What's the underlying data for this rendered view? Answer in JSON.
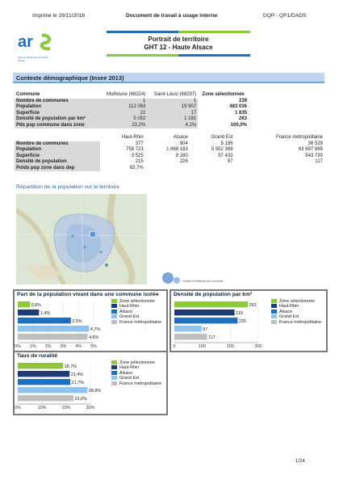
{
  "header": {
    "printed": "Imprimé le 28/11/2016",
    "doc_type": "Document de travail à usage interne",
    "dept": "DQP - QP1/DADS"
  },
  "logo": {
    "name": "ars",
    "sub": "Agence Régionale de Santé",
    "region": "Alsace"
  },
  "title": {
    "line1": "Portrait de territoire",
    "line2": "GHT 12 - Haute Alsace"
  },
  "section": "Contexte démographique (Insee 2013)",
  "table1": {
    "headers": [
      "Commune",
      "Mulhouse (68224)",
      "Saint-Louis (68297)",
      "Zone sélectionnée"
    ],
    "rows": [
      [
        "Nombre de communes",
        "1",
        "1",
        "239"
      ],
      [
        "Population",
        "112 063",
        "19 907",
        "483 036"
      ],
      [
        "Superficie",
        "22",
        "17",
        "1 835"
      ],
      [
        "Densité de population par km²",
        "5 052",
        "1 181",
        "263"
      ],
      [
        "Pds pop commune dans zone",
        "23,2%",
        "4,1%",
        "100,0%"
      ]
    ]
  },
  "table2": {
    "headers": [
      "",
      "Haut-Rhin",
      "Alsace",
      "Grand Est",
      "France métropolitaine"
    ],
    "rows": [
      [
        "Nombre de communes",
        "377",
        "904",
        "5 196",
        "36 529"
      ],
      [
        "Population",
        "758 723",
        "1 868 183",
        "5 552 388",
        "63 697 865"
      ],
      [
        "Superficie",
        "3 525",
        "8 280",
        "57 433",
        "543 730"
      ],
      [
        "Densité de population",
        "215",
        "226",
        "97",
        "117"
      ],
      [
        "Poids pop zone dans dep",
        "63,7%",
        "",
        "",
        ""
      ]
    ]
  },
  "map": {
    "title": "Répartition de la population sur le territoire",
    "legend_text": "nombre d'habitants par commune"
  },
  "colors": {
    "zone": "#8dc63f",
    "haut_rhin": "#1f3b73",
    "alsace": "#1f6fc0",
    "grand_est": "#8fc3ef",
    "france": "#bfbfbf"
  },
  "legend_labels": [
    "Zone sélectionnée",
    "Haut-Rhin",
    "Alsace",
    "Grand Est",
    "France métropolitaine"
  ],
  "chart_data": [
    {
      "type": "bar",
      "title": "Part de la population vivant dans une commune isolée",
      "categories": [
        "Zone sélectionnée",
        "Haut-Rhin",
        "Alsace",
        "Grand Est",
        "France métropolitaine"
      ],
      "values": [
        0.8,
        1.4,
        3.5,
        4.7,
        4.6
      ],
      "value_labels": [
        "0,8%",
        "1,4%",
        "3,5%",
        "4,7%",
        "4,6%"
      ],
      "xlim": [
        0,
        5
      ],
      "ticks": [
        "0%",
        "1%",
        "2%",
        "3%",
        "4%",
        "5%"
      ]
    },
    {
      "type": "bar",
      "title": "Densité de population par km²",
      "categories": [
        "Zone sélectionnée",
        "Haut-Rhin",
        "Alsace",
        "Grand Est",
        "France métropolitaine"
      ],
      "values": [
        263,
        215,
        226,
        97,
        117
      ],
      "value_labels": [
        "263",
        "215",
        "226",
        "97",
        "117"
      ],
      "xlim": [
        0,
        300
      ],
      "ticks": [
        "0",
        "100",
        "200",
        "300"
      ]
    },
    {
      "type": "bar",
      "title": "Taux de ruralité",
      "categories": [
        "Zone sélectionnée",
        "Haut-Rhin",
        "Alsace",
        "Grand Est",
        "France métropolitaine"
      ],
      "values": [
        18.7,
        21.4,
        21.7,
        28.8,
        23.0
      ],
      "value_labels": [
        "18,7%",
        "21,4%",
        "21,7%",
        "28,8%",
        "23,0%"
      ],
      "xlim": [
        0,
        30
      ],
      "ticks": [
        "0%",
        "10%",
        "20%",
        "30%"
      ]
    }
  ],
  "page_number": "1/24"
}
